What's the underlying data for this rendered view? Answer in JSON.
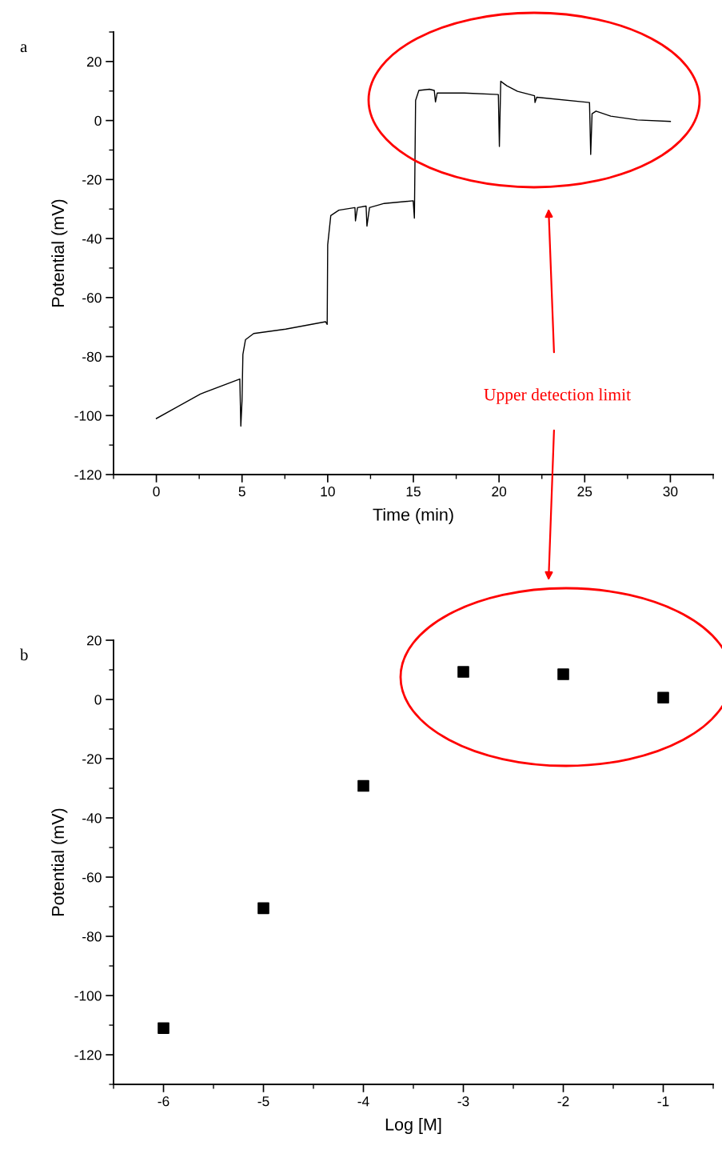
{
  "chart_data": [
    {
      "type": "line",
      "xlabel": "Time (min)",
      "ylabel": "Potential (mV)",
      "annotations": [
        "a",
        "Upper detection limit"
      ],
      "series": [
        {
          "color": "#000000",
          "x": [
            0,
            2.57,
            4.87,
            4.93,
            5.0,
            5.05,
            5.2,
            5.68,
            7.55,
            9.88,
            9.97,
            10.0,
            10.18,
            10.65,
            11.59,
            11.62,
            11.74,
            12.24,
            12.29,
            12.44,
            13.3,
            14.99,
            15.06,
            15.13,
            15.32,
            15.94,
            16.22,
            16.29,
            16.39,
            17.97,
            19.96,
            20.02,
            20.1,
            20.45,
            21.08,
            22.07,
            22.1,
            22.2,
            25.28,
            25.35,
            25.43,
            25.66,
            26.52,
            28.08,
            30.0
          ],
          "values": [
            -101,
            -92.7,
            -87.6,
            -103.6,
            -95,
            -79.3,
            -74.3,
            -72.2,
            -70.7,
            -68.2,
            -69.1,
            -42.1,
            -32.2,
            -30.4,
            -29.5,
            -34,
            -29.5,
            -29,
            -35.8,
            -29.5,
            -28.1,
            -27.2,
            -33.1,
            6.8,
            10.2,
            10.6,
            10.2,
            6.3,
            9.3,
            9.3,
            8.8,
            -8.8,
            13.3,
            11.8,
            9.9,
            8.4,
            6.1,
            7.9,
            6.1,
            -11.5,
            2.3,
            3.2,
            1.5,
            0.2,
            -0.3
          ]
        }
      ],
      "xlim": [
        -2.5,
        32.5
      ],
      "xticks": [
        0,
        5,
        10,
        15,
        20,
        25,
        30
      ],
      "ylim": [
        -120,
        30
      ],
      "yticks": [
        -120,
        -100,
        -80,
        -60,
        -40,
        -20,
        0,
        20
      ],
      "grid": false,
      "marker": "none",
      "line_style": "solid"
    },
    {
      "type": "scatter",
      "xlabel": "Log [M]",
      "ylabel": "Potential (mV)",
      "annotations": [
        "b"
      ],
      "series": [
        {
          "color": "#000000",
          "x": [
            -6,
            -5,
            -4,
            -3,
            -2,
            -1
          ],
          "values": [
            -111,
            -70.5,
            -29.2,
            9.3,
            8.5,
            0.6
          ]
        }
      ],
      "xlim": [
        -6.5,
        -0.5
      ],
      "xticks": [
        {
          "value": -6,
          "label": "-6"
        },
        {
          "value": -5,
          "label": "-5"
        },
        {
          "value": -4,
          "label": "-4"
        },
        {
          "value": -3,
          "label": "-3"
        },
        {
          "value": -2,
          "label": "-2"
        },
        {
          "value": -1,
          "label": "-1"
        }
      ],
      "ylim": [
        -130,
        20
      ],
      "yticks": [
        -120,
        -100,
        -80,
        -60,
        -40,
        -20,
        0,
        20
      ],
      "grid": false,
      "marker": "square"
    }
  ]
}
